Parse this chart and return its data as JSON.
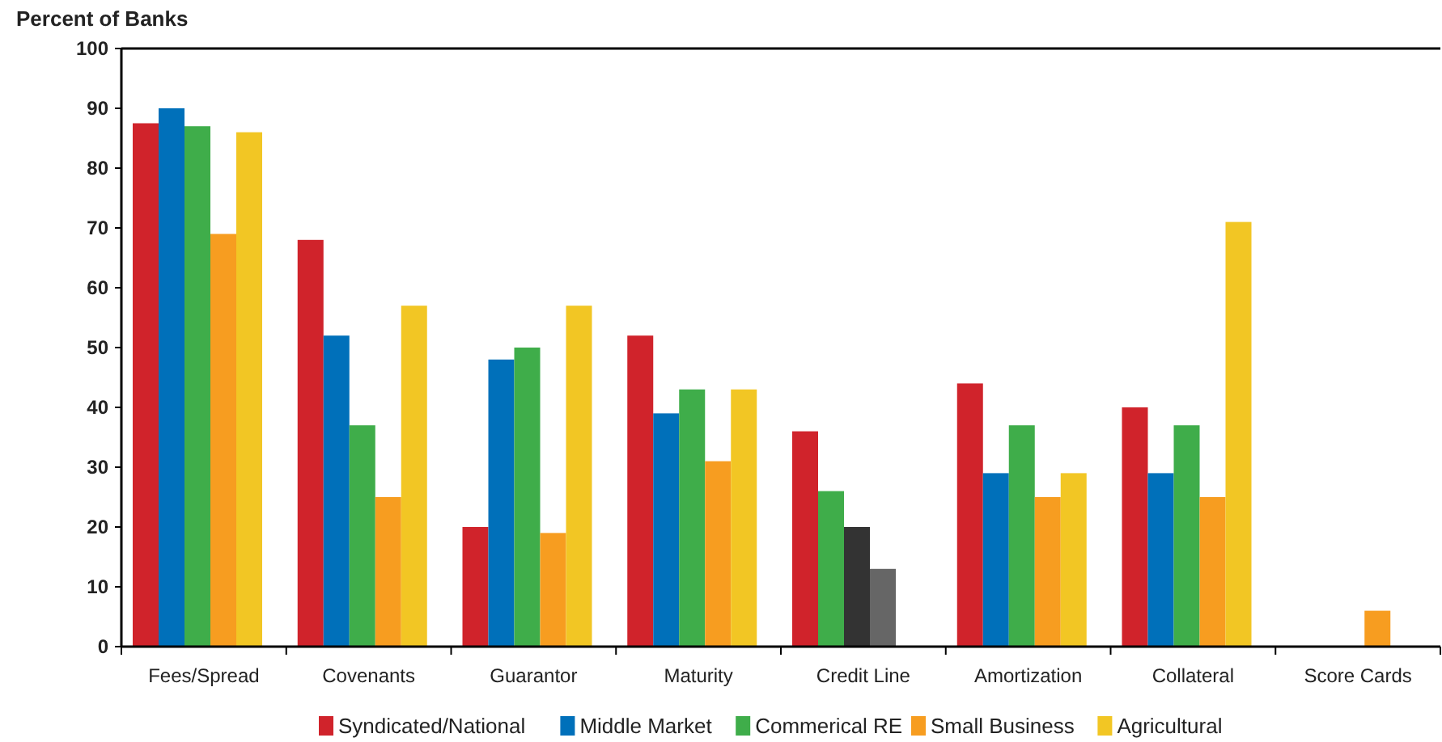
{
  "chart_data": {
    "type": "bar",
    "ylabel": "Percent of Banks",
    "categories": [
      "Fees/Spread",
      "Covenants",
      "Guarantor",
      "Maturity",
      "Credit Line",
      "Amortization",
      "Collateral",
      "Score Cards"
    ],
    "series": [
      {
        "name": "Syndicated/National",
        "color": "#d0232b",
        "values": [
          87.5,
          68,
          20,
          52,
          36,
          44,
          40,
          null
        ]
      },
      {
        "name": "Middle Market",
        "color": "#0070ba",
        "colors": [
          "#0070ba",
          "#0070ba",
          "#0070ba",
          "#0070ba",
          "#3fad4a",
          "#0070ba",
          "#0070ba",
          null
        ],
        "values": [
          90,
          52,
          48,
          39,
          26,
          29,
          29,
          null
        ]
      },
      {
        "name": "Commerical RE",
        "color": "#3fad4a",
        "colors": [
          "#3fad4a",
          "#3fad4a",
          "#3fad4a",
          "#3fad4a",
          "#333333",
          "#3fad4a",
          "#3fad4a",
          null
        ],
        "values": [
          87,
          37,
          50,
          43,
          20,
          37,
          37,
          null
        ]
      },
      {
        "name": "Small Business",
        "color": "#f79d20",
        "colors": [
          "#f79d20",
          "#f79d20",
          "#f79d20",
          "#f79d20",
          "#666666",
          "#f79d20",
          "#f79d20",
          "#f79d20"
        ],
        "values": [
          69,
          25,
          19,
          31,
          13,
          25,
          25,
          6
        ]
      },
      {
        "name": "Agricultural",
        "color": "#f2c624",
        "values": [
          86,
          57,
          57,
          43,
          null,
          29,
          71,
          null
        ]
      }
    ],
    "ylim": [
      0,
      100
    ],
    "yticks": [
      0,
      10,
      20,
      30,
      40,
      50,
      60,
      70,
      80,
      90,
      100
    ],
    "grid": false,
    "legend": "bottom"
  }
}
